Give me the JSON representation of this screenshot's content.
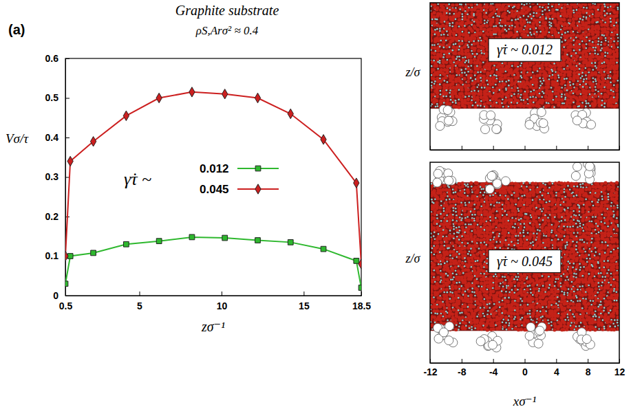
{
  "chart_data": [
    {
      "type": "line",
      "panel": "(a)",
      "title": "Graphite substrate",
      "subtitle": "ρS,Arσ² ≈ 0.4",
      "x_label": "zσ⁻¹",
      "y_label": "Vσ/τ",
      "legend_title": "γ̇τ ~",
      "legend": "center",
      "x": [
        0.5,
        0.8,
        2.2,
        4.2,
        6.2,
        8.2,
        10.2,
        12.2,
        14.2,
        16.2,
        18.2,
        18.5
      ],
      "series": [
        {
          "name": "0.012",
          "color": "#2eb82e",
          "marker": "square",
          "values": [
            0.03,
            0.1,
            0.108,
            0.13,
            0.138,
            0.148,
            0.146,
            0.14,
            0.135,
            0.118,
            0.088,
            0.02
          ]
        },
        {
          "name": "0.045",
          "color": "#cc1f1f",
          "marker": "diamond",
          "values": [
            0.1,
            0.34,
            0.39,
            0.455,
            0.5,
            0.515,
            0.51,
            0.5,
            0.46,
            0.395,
            0.285,
            0.08
          ]
        }
      ],
      "xlim": [
        0.5,
        18.5
      ],
      "xticks": [
        0.5,
        5,
        10,
        15,
        18.5
      ],
      "ylim": [
        0,
        0.6
      ],
      "yticks": [
        0,
        0.1,
        0.2,
        0.3,
        0.4,
        0.5,
        0.6
      ]
    },
    {
      "type": "snapshot",
      "x_label": "xσ⁻¹",
      "y_label": "z/σ",
      "panels": [
        {
          "label": "γ̇τ ~ 0.012"
        },
        {
          "label": "γ̇τ ~ 0.045"
        }
      ],
      "xlim": [
        -12,
        12
      ],
      "xticks": [
        -12,
        -8,
        -4,
        0,
        4,
        8,
        12
      ],
      "tick_labels": "x"
    }
  ]
}
